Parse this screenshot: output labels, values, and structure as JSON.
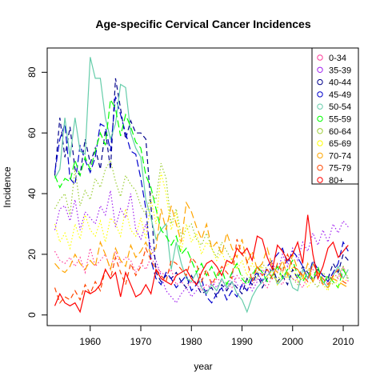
{
  "chart_data": {
    "type": "line",
    "title": "Age-specific Cervical Cancer Incidences",
    "xlabel": "year",
    "ylabel": "Incidence",
    "xlim": [
      1951.5,
      2013
    ],
    "ylim": [
      -3.5,
      88
    ],
    "xticks": [
      1960,
      1970,
      1980,
      1990,
      2000,
      2010
    ],
    "yticks": [
      0,
      20,
      40,
      60,
      80
    ],
    "grid": false,
    "legend_position": "top-right",
    "x": [
      1953,
      1954,
      1955,
      1956,
      1957,
      1958,
      1959,
      1960,
      1961,
      1962,
      1963,
      1964,
      1965,
      1966,
      1967,
      1968,
      1969,
      1970,
      1971,
      1972,
      1973,
      1974,
      1975,
      1976,
      1977,
      1978,
      1979,
      1980,
      1981,
      1982,
      1983,
      1984,
      1985,
      1986,
      1987,
      1988,
      1989,
      1990,
      1991,
      1992,
      1993,
      1994,
      1995,
      1996,
      1997,
      1998,
      1999,
      2000,
      2001,
      2002,
      2003,
      2004,
      2005,
      2006,
      2007,
      2008,
      2009,
      2010,
      2011
    ],
    "series": [
      {
        "name": "0-34",
        "color": "#FF3C9A",
        "dash": "dotted",
        "values": [
          21,
          18,
          17,
          19,
          16,
          19,
          14,
          22,
          16,
          18,
          20,
          15,
          21,
          17,
          19,
          18,
          14,
          17,
          15,
          19,
          16,
          14,
          13,
          15,
          10,
          11,
          9,
          11,
          10,
          8,
          10,
          9,
          12,
          11,
          10,
          9,
          13,
          11,
          8,
          10,
          12,
          11,
          9,
          13,
          11,
          10,
          14,
          12,
          11,
          9,
          13,
          15,
          12,
          10,
          11,
          14,
          12,
          16,
          11
        ]
      },
      {
        "name": "35-39",
        "color": "#A020F0",
        "dash": "dotted",
        "values": [
          28,
          35,
          36,
          31,
          38,
          28,
          34,
          32,
          30,
          36,
          33,
          41,
          29,
          35,
          32,
          40,
          28,
          25,
          30,
          22,
          18,
          13,
          8,
          6,
          4,
          7,
          9,
          6,
          8,
          10,
          7,
          11,
          9,
          12,
          8,
          14,
          10,
          9,
          12,
          8,
          11,
          15,
          13,
          17,
          14,
          20,
          16,
          22,
          18,
          24,
          21,
          27,
          23,
          28,
          24,
          30,
          27,
          31,
          29
        ]
      },
      {
        "name": "40-44",
        "color": "#00008B",
        "dash": "dashed",
        "values": [
          46,
          65,
          52,
          62,
          48,
          46,
          58,
          50,
          55,
          48,
          61,
          48,
          78,
          68,
          58,
          64,
          60,
          60,
          58,
          36,
          14,
          11,
          13,
          12,
          14,
          11,
          9,
          13,
          10,
          7,
          8,
          9,
          6,
          10,
          8,
          11,
          9,
          7,
          12,
          10,
          14,
          9,
          12,
          16,
          11,
          13,
          10,
          15,
          12,
          16,
          14,
          11,
          15,
          13,
          12,
          17,
          14,
          20,
          18
        ]
      },
      {
        "name": "45-49",
        "color": "#0000CD",
        "dash": "longdash",
        "values": [
          47,
          58,
          63,
          45,
          43,
          56,
          51,
          47,
          52,
          63,
          62,
          54,
          72,
          66,
          60,
          54,
          53,
          45,
          35,
          18,
          12,
          10,
          14,
          12,
          9,
          11,
          13,
          8,
          10,
          12,
          6,
          4,
          7,
          9,
          5,
          8,
          6,
          10,
          8,
          12,
          14,
          11,
          16,
          18,
          20,
          22,
          17,
          21,
          19,
          16,
          12,
          18,
          15,
          13,
          11,
          14,
          17,
          24,
          21
        ]
      },
      {
        "name": "50-54",
        "color": "#66CDAA",
        "dash": "solid",
        "values": [
          45,
          48,
          65,
          52,
          65,
          54,
          53,
          85,
          78,
          78,
          65,
          58,
          63,
          76,
          75,
          60,
          55,
          52,
          38,
          32,
          25,
          28,
          30,
          15,
          24,
          17,
          12,
          11,
          14,
          9,
          7,
          10,
          8,
          12,
          9,
          11,
          7,
          5,
          1,
          6,
          9,
          11,
          13,
          15,
          10,
          12,
          14,
          9,
          8,
          15,
          12,
          17,
          14,
          11,
          9,
          13,
          16,
          12,
          15
        ]
      },
      {
        "name": "55-59",
        "color": "#00FF00",
        "dash": "longdash",
        "values": [
          46,
          42,
          45,
          44,
          51,
          46,
          52,
          48,
          54,
          60,
          56,
          71,
          68,
          59,
          66,
          62,
          57,
          55,
          46,
          42,
          35,
          28,
          26,
          23,
          26,
          20,
          22,
          18,
          14,
          17,
          13,
          16,
          12,
          15,
          10,
          14,
          17,
          12,
          10,
          13,
          16,
          14,
          11,
          13,
          16,
          12,
          15,
          18,
          13,
          11,
          14,
          12,
          16,
          10,
          13,
          11,
          9,
          15,
          12
        ]
      },
      {
        "name": "60-64",
        "color": "#9ACD32",
        "dash": "dotted",
        "values": [
          35,
          38,
          40,
          33,
          48,
          36,
          41,
          38,
          45,
          42,
          48,
          51,
          44,
          39,
          46,
          43,
          41,
          36,
          33,
          40,
          38,
          50,
          45,
          30,
          35,
          26,
          28,
          30,
          25,
          23,
          27,
          22,
          19,
          24,
          21,
          18,
          16,
          13,
          11,
          14,
          12,
          17,
          15,
          13,
          11,
          16,
          14,
          12,
          10,
          13,
          15,
          11,
          9,
          14,
          12,
          10,
          13,
          16,
          12
        ]
      },
      {
        "name": "65-69",
        "color": "#FFFF00",
        "dash": "dotted",
        "values": [
          30,
          24,
          27,
          22,
          30,
          25,
          33,
          28,
          26,
          31,
          24,
          32,
          30,
          26,
          35,
          28,
          26,
          32,
          25,
          38,
          30,
          47,
          40,
          28,
          34,
          21,
          30,
          24,
          27,
          20,
          24,
          22,
          18,
          21,
          16,
          19,
          15,
          18,
          13,
          17,
          14,
          16,
          12,
          15,
          10,
          14,
          12,
          16,
          11,
          13,
          9,
          12,
          14,
          10,
          8,
          13,
          9,
          12,
          11
        ]
      },
      {
        "name": "70-74",
        "color": "#FFA500",
        "dash": "longdash",
        "values": [
          17,
          15,
          14,
          16,
          20,
          17,
          15,
          18,
          16,
          24,
          20,
          15,
          22,
          18,
          16,
          23,
          19,
          21,
          24,
          20,
          22,
          35,
          28,
          36,
          30,
          24,
          37,
          34,
          29,
          25,
          30,
          22,
          24,
          20,
          27,
          22,
          19,
          25,
          17,
          21,
          15,
          17,
          22,
          16,
          14,
          18,
          13,
          20,
          15,
          12,
          17,
          11,
          14,
          10,
          9,
          12,
          11,
          10,
          9
        ]
      },
      {
        "name": "75-79",
        "color": "#FF4500",
        "dash": "dashed",
        "values": [
          9,
          4,
          6,
          5,
          8,
          5,
          10,
          7,
          11,
          8,
          15,
          12,
          19,
          14,
          10,
          17,
          13,
          16,
          22,
          18,
          15,
          13,
          11,
          18,
          17,
          15,
          13,
          19,
          17,
          11,
          15,
          10,
          13,
          16,
          14,
          12,
          25,
          20,
          18,
          11,
          16,
          13,
          15,
          12,
          17,
          14,
          20,
          16,
          15,
          13,
          11,
          17,
          14,
          12,
          10,
          13,
          15,
          11,
          10
        ]
      },
      {
        "name": "80+",
        "color": "#FF0000",
        "dash": "solid",
        "values": [
          3,
          7,
          4,
          3,
          4,
          1,
          8,
          7,
          8,
          10,
          15,
          12,
          14,
          6,
          14,
          10,
          6,
          7,
          10,
          7,
          15,
          12,
          11,
          10,
          13,
          14,
          15,
          12,
          10,
          14,
          17,
          18,
          16,
          13,
          18,
          17,
          22,
          20,
          22,
          18,
          26,
          25,
          19,
          15,
          23,
          21,
          18,
          20,
          24,
          17,
          33,
          20,
          12,
          16,
          22,
          24,
          19,
          21,
          23
        ]
      }
    ]
  }
}
